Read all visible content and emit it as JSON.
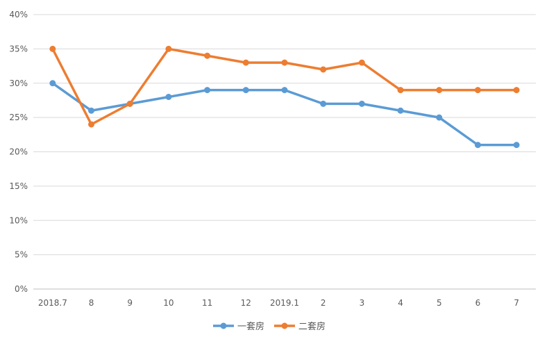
{
  "chart_data": {
    "type": "line",
    "categories": [
      "2018.7",
      "8",
      "9",
      "10",
      "11",
      "12",
      "2019.1",
      "2",
      "3",
      "4",
      "5",
      "6",
      "7"
    ],
    "series": [
      {
        "name": "一套房",
        "color": "#5b9bd5",
        "values": [
          30,
          26,
          27,
          28,
          29,
          29,
          29,
          27,
          27,
          26,
          25,
          21,
          21
        ]
      },
      {
        "name": "二套房",
        "color": "#ed7d31",
        "values": [
          35,
          24,
          27,
          35,
          34,
          33,
          33,
          32,
          33,
          29,
          29,
          29,
          29
        ]
      }
    ],
    "y_ticks": [
      "0%",
      "5%",
      "10%",
      "15%",
      "20%",
      "25%",
      "30%",
      "35%",
      "40%"
    ],
    "ylim": [
      0,
      40
    ],
    "grid": true,
    "legend_position": "bottom",
    "title": "",
    "xlabel": "",
    "ylabel": ""
  }
}
